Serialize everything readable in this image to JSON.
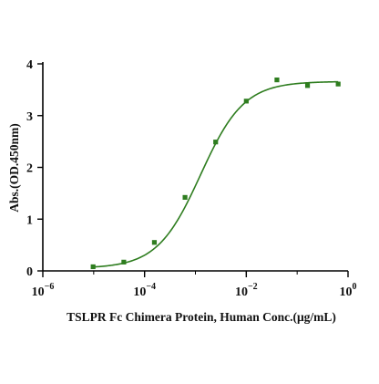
{
  "chart_data": {
    "type": "scatter",
    "xlabel": "TSLPR Fc Chimera Protein, Human Conc.(μg/mL)",
    "ylabel": "Abs.(OD.450nm)",
    "x_scale": "log",
    "x_range": [
      1e-06,
      1
    ],
    "y_range": [
      0,
      4
    ],
    "x_ticks": [
      {
        "base": "10",
        "exp": "-6",
        "value": 1e-06
      },
      {
        "base": "10",
        "exp": "-4",
        "value": 0.0001
      },
      {
        "base": "10",
        "exp": "-2",
        "value": 0.01
      },
      {
        "base": "10",
        "exp": "0",
        "value": 1
      }
    ],
    "y_ticks": [
      {
        "label": "0",
        "value": 0
      },
      {
        "label": "1",
        "value": 1
      },
      {
        "label": "2",
        "value": 2
      },
      {
        "label": "3",
        "value": 3
      },
      {
        "label": "4",
        "value": 4
      }
    ],
    "grid": false,
    "legend": "none",
    "color": "#2e7d1f",
    "series": [
      {
        "points": [
          {
            "x": 9.74e-06,
            "y": 0.08
          },
          {
            "x": 3.91e-05,
            "y": 0.17
          },
          {
            "x": 0.000156,
            "y": 0.55
          },
          {
            "x": 0.000625,
            "y": 1.42
          },
          {
            "x": 0.0025,
            "y": 2.49
          },
          {
            "x": 0.01,
            "y": 3.28
          },
          {
            "x": 0.04,
            "y": 3.69
          },
          {
            "x": 0.16,
            "y": 3.58
          },
          {
            "x": 0.64,
            "y": 3.61
          }
        ],
        "fit": {
          "model": "4PL",
          "bottom": 0.05,
          "top": 3.66,
          "ec50": 0.00126,
          "hill": 1.02
        }
      }
    ]
  }
}
